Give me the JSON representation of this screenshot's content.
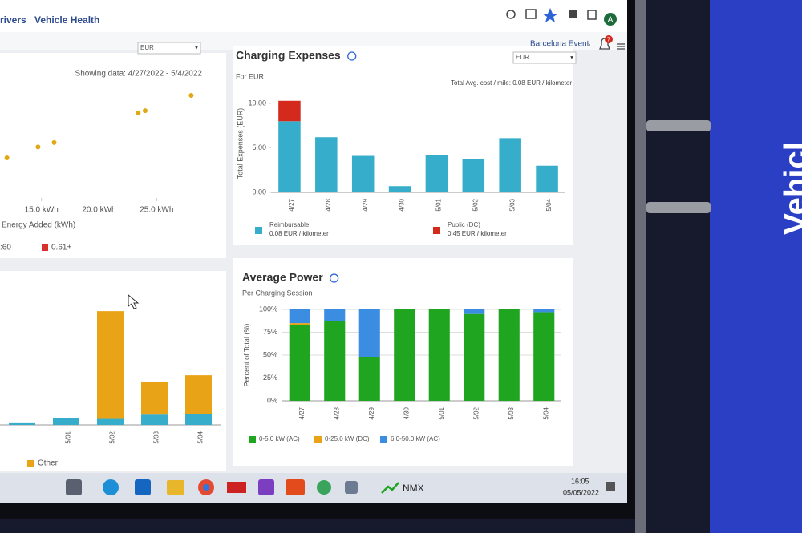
{
  "browser": {
    "tabs": [
      "rivers",
      "Vehicle Health"
    ],
    "avatar": "A"
  },
  "header": {
    "event": "Barcelona Event",
    "notifications": "7"
  },
  "chart_data": [
    {
      "type": "scatter",
      "currency": "EUR",
      "subtitle": "Showing data: 4/27/2022 - 5/4/2022",
      "x_label": "Energy Added (kWh)",
      "color": "#e0a812",
      "x": [
        12.0,
        14.7,
        16.1,
        23.4,
        24.0,
        28.0
      ],
      "values": [
        0.35,
        0.45,
        0.49,
        0.76,
        0.78,
        0.92
      ],
      "xlim": [
        11.4,
        30.2
      ],
      "ylim": [
        0,
        1
      ],
      "xticks": [
        {
          "value": 15,
          "label": "15.0 kWh"
        },
        {
          "value": 20,
          "label": "20.0 kWh"
        },
        {
          "value": 25,
          "label": "25.0 kWh"
        }
      ],
      "legend": [
        {
          "label": ":60"
        },
        {
          "label": "0.61+",
          "color": "#d9302c"
        }
      ]
    },
    {
      "type": "bar",
      "title": "Charging Expenses",
      "currency": "EUR",
      "subtitle": "For EUR",
      "note": "Total Avg. cost / mile: 0.08 EUR / kilometer",
      "y_label": "Total Expenses (EUR)",
      "categories": [
        "4/27",
        "4/28",
        "4/29",
        "4/30",
        "5/01",
        "5/02",
        "5/03",
        "5/04"
      ],
      "series": [
        {
          "name": "Reimbursable",
          "detail": "0.08 EUR / kilometer",
          "color": "#36aecb",
          "values": [
            8.0,
            6.2,
            4.1,
            0.7,
            4.2,
            3.7,
            6.1,
            3.0
          ]
        },
        {
          "name": "Public (DC)",
          "detail": "0.45 EUR / kilometer",
          "color": "#d42a1e",
          "values": [
            2.3,
            0,
            0,
            0,
            0,
            0,
            0,
            0
          ]
        }
      ],
      "ylim": [
        0,
        11
      ],
      "yticks": [
        {
          "value": 0,
          "label": "0.00"
        },
        {
          "value": 5,
          "label": "5.00"
        },
        {
          "value": 10,
          "label": "10.00"
        }
      ],
      "grid": false
    },
    {
      "type": "bar",
      "categories": [
        null,
        "5/01",
        "5/02",
        "5/03",
        "5/04"
      ],
      "series": [
        {
          "color": "#36aecb",
          "values": [
            2,
            8,
            7,
            12,
            13
          ]
        },
        {
          "name": "Other",
          "color": "#e8a317",
          "values": [
            0,
            0,
            126,
            38,
            45
          ]
        }
      ],
      "ylim": [
        0,
        150
      ],
      "grid": false
    },
    {
      "type": "bar",
      "title": "Average Power",
      "subtitle": "Per Charging Session",
      "y_label": "Percent of Total (%)",
      "categories": [
        "4/27",
        "4/28",
        "4/29",
        "4/30",
        "5/01",
        "5/02",
        "5/03",
        "5/04"
      ],
      "series": [
        {
          "name": "0-5.0 kW (AC)",
          "color": "#1fa51f",
          "values": [
            83,
            87,
            48,
            100,
            100,
            95,
            100,
            97
          ]
        },
        {
          "name": "0-25.0 kW (DC)",
          "color": "#e8a317",
          "values": [
            2,
            0,
            0,
            0,
            0,
            0,
            0,
            0
          ]
        },
        {
          "name": "6.0-50.0 kW (AC)",
          "color": "#3a8de0",
          "values": [
            15,
            13,
            52,
            0,
            0,
            5,
            0,
            3
          ]
        }
      ],
      "ylim": [
        0,
        100
      ],
      "yticks": [
        {
          "value": 0,
          "label": "0%"
        },
        {
          "value": 25,
          "label": "25%"
        },
        {
          "value": 50,
          "label": "50%"
        },
        {
          "value": 75,
          "label": "75%"
        },
        {
          "value": 100,
          "label": "100%"
        }
      ],
      "grid": true
    }
  ],
  "taskbar": {
    "app": "NMX",
    "time": "16:05",
    "date": "05/05/2022"
  },
  "side": {
    "text": "Vehicl"
  }
}
